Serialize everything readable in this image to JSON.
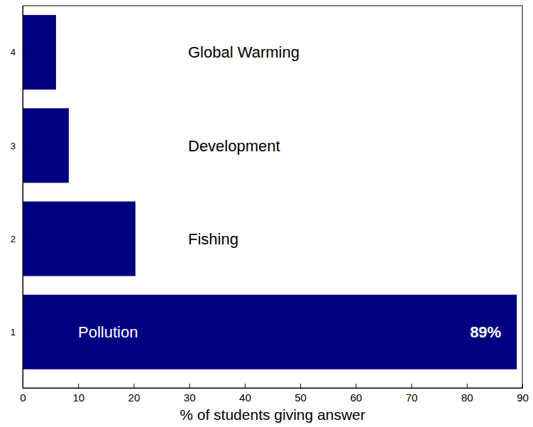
{
  "chart_data": {
    "type": "bar",
    "orientation": "horizontal",
    "categories": [
      "Pollution",
      "Fishing",
      "Development",
      "Global Warming"
    ],
    "x": [
      1,
      2,
      3,
      4
    ],
    "values": [
      89,
      20.3,
      8.3,
      6
    ],
    "value_labels": [
      "89%",
      null,
      null,
      null
    ],
    "data_labels": true,
    "color": "#000080",
    "xlim": [
      0,
      90
    ],
    "xticks": [
      0,
      10,
      20,
      30,
      40,
      50,
      60,
      70,
      80,
      90
    ],
    "ylim": [
      0.4,
      4.5
    ],
    "yticks": [
      1,
      2,
      3,
      4
    ],
    "xlabel": "% of students giving answer"
  }
}
